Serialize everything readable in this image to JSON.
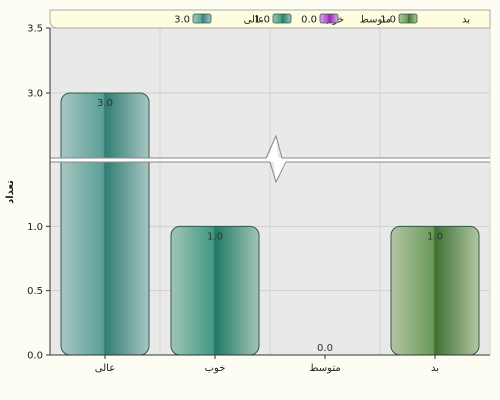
{
  "chart_data": {
    "type": "bar",
    "title": "",
    "xlabel": "",
    "ylabel": "تعداد",
    "categories": [
      "عالی",
      "خوب",
      "متوسط",
      "بد"
    ],
    "values": [
      3.0,
      1.0,
      0.0,
      1.0
    ],
    "value_labels": [
      "3.0",
      "1.0",
      "0.0",
      "1.0"
    ],
    "ylim": [
      0,
      3.5
    ],
    "axis_break": [
      1.5,
      2.5
    ],
    "yticks_lower": [
      {
        "v": 0.0,
        "label": "0.0"
      },
      {
        "v": 0.5,
        "label": "0.5"
      },
      {
        "v": 1.0,
        "label": "1.0"
      }
    ],
    "yticks_upper": [
      {
        "v": 3.0,
        "label": "3.0"
      },
      {
        "v": 3.5,
        "label": "3.5"
      }
    ],
    "grid": true,
    "legend_placement": "top",
    "colors": [
      "#5a9f96",
      "#3f9a82",
      "#b23ccf",
      "#6a9a58"
    ],
    "legend": [
      {
        "category": "عالی",
        "value": "3.0"
      },
      {
        "category": "خوب",
        "value": "1.0"
      },
      {
        "category": "متوسط",
        "value": "0.0"
      },
      {
        "category": "بد",
        "value": "1.0"
      }
    ]
  }
}
